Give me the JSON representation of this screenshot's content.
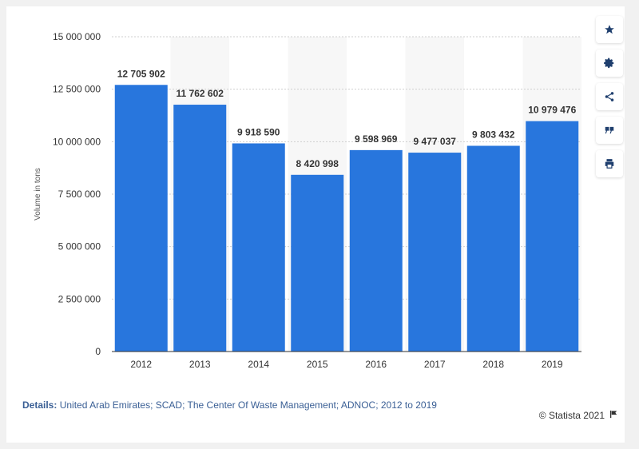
{
  "chart_data": {
    "type": "bar",
    "categories": [
      "2012",
      "2013",
      "2014",
      "2015",
      "2016",
      "2017",
      "2018",
      "2019"
    ],
    "values": [
      12705902,
      11762602,
      9918590,
      8420998,
      9598969,
      9477037,
      9803432,
      10979476
    ],
    "value_labels": [
      "12 705 902",
      "11 762 602",
      "9 918 590",
      "8 420 998",
      "9 598 969",
      "9 477 037",
      "9 803 432",
      "10 979 476"
    ],
    "ylabel": "Volume in tons",
    "ylim": [
      0,
      15000000
    ],
    "yticks": [
      0,
      2500000,
      5000000,
      7500000,
      10000000,
      12500000,
      15000000
    ],
    "ytick_labels": [
      "0",
      "2 500 000",
      "5 000 000",
      "7 500 000",
      "10 000 000",
      "12 500 000",
      "15 000 000"
    ],
    "grid": true,
    "bar_color": "#2876dd",
    "band_color": "#f7f7f7"
  },
  "footer": {
    "details_label": "Details:",
    "details_text": "United Arab Emirates; SCAD; The Center Of Waste Management; ADNOC; 2012 to 2019",
    "credit": "© Statista 2021"
  },
  "toolbar": {
    "icons": [
      "star-icon",
      "gear-icon",
      "share-icon",
      "quote-icon",
      "print-icon"
    ]
  }
}
